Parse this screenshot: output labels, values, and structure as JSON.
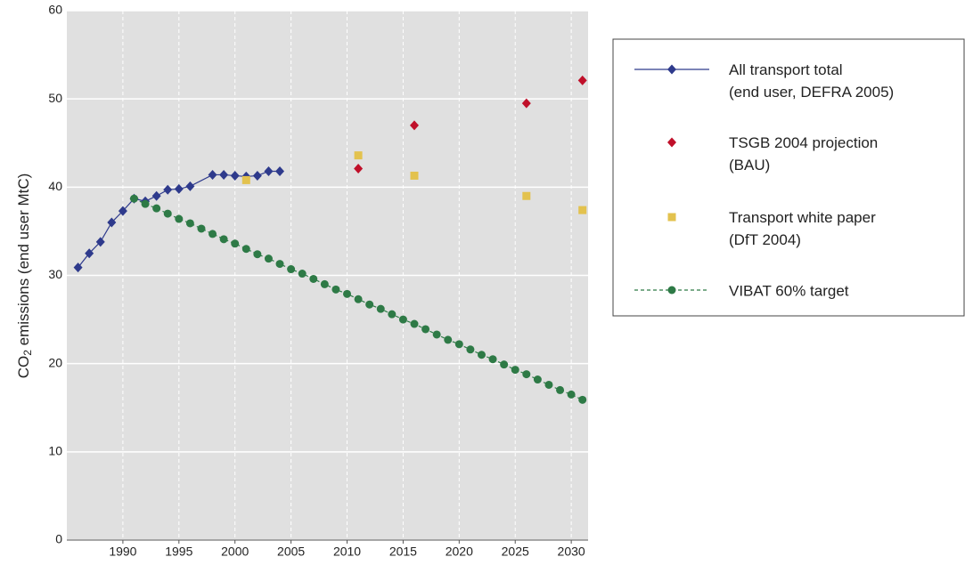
{
  "chart_data": {
    "type": "line",
    "ylabel": {
      "main": "CO",
      "sub": "2",
      "rest": " emissions (end user MtC)"
    },
    "xlim": [
      1985,
      2031.5
    ],
    "ylim": [
      0,
      60
    ],
    "xticks": [
      1990,
      1995,
      2000,
      2005,
      2010,
      2015,
      2020,
      2025,
      2030
    ],
    "yticks": [
      0,
      10,
      20,
      30,
      40,
      50,
      60
    ],
    "grid": true,
    "series": [
      {
        "name": "All transport total (end user, DEFRA 2005)",
        "color": "#2e3a8c",
        "marker": "diamond",
        "line": "solid",
        "x": [
          1986,
          1987,
          1988,
          1989,
          1990,
          1991,
          1992,
          1993,
          1994,
          1995,
          1996,
          1998,
          1999,
          2000,
          2001,
          2002,
          2003,
          2004
        ],
        "values": [
          30.9,
          32.5,
          33.8,
          36.0,
          37.3,
          38.7,
          38.4,
          39.0,
          39.7,
          39.8,
          40.1,
          41.4,
          41.4,
          41.3,
          41.2,
          41.3,
          41.8,
          41.8
        ]
      },
      {
        "name": "TSGB 2004 projection (BAU)",
        "color": "#c0102a",
        "marker": "diamond",
        "line": "none",
        "x": [
          2011,
          2016,
          2026,
          2031
        ],
        "values": [
          42.1,
          47.0,
          49.5,
          52.1
        ]
      },
      {
        "name": "Transport white paper (DfT 2004)",
        "color": "#e3c24e",
        "marker": "square",
        "line": "none",
        "x": [
          2001,
          2011,
          2016,
          2026,
          2031
        ],
        "values": [
          40.8,
          43.6,
          41.3,
          39.0,
          37.4
        ]
      },
      {
        "name": "VIBAT 60% target",
        "color": "#2e7a46",
        "marker": "circle",
        "line": "dashed",
        "x": [
          1991,
          1992,
          1993,
          1994,
          1995,
          1996,
          1997,
          1998,
          1999,
          2000,
          2001,
          2002,
          2003,
          2004,
          2005,
          2006,
          2007,
          2008,
          2009,
          2010,
          2011,
          2012,
          2013,
          2014,
          2015,
          2016,
          2017,
          2018,
          2019,
          2020,
          2021,
          2022,
          2023,
          2024,
          2025,
          2026,
          2027,
          2028,
          2029,
          2030,
          2031
        ],
        "values": [
          38.7,
          38.1,
          37.6,
          37.0,
          36.4,
          35.9,
          35.3,
          34.7,
          34.1,
          33.6,
          33.0,
          32.4,
          31.9,
          31.3,
          30.7,
          30.2,
          29.6,
          29.0,
          28.4,
          27.9,
          27.3,
          26.7,
          26.2,
          25.6,
          25.0,
          24.5,
          23.9,
          23.3,
          22.7,
          22.2,
          21.6,
          21.0,
          20.5,
          19.9,
          19.3,
          18.8,
          18.2,
          17.6,
          17.0,
          16.5,
          15.9
        ]
      }
    ]
  }
}
